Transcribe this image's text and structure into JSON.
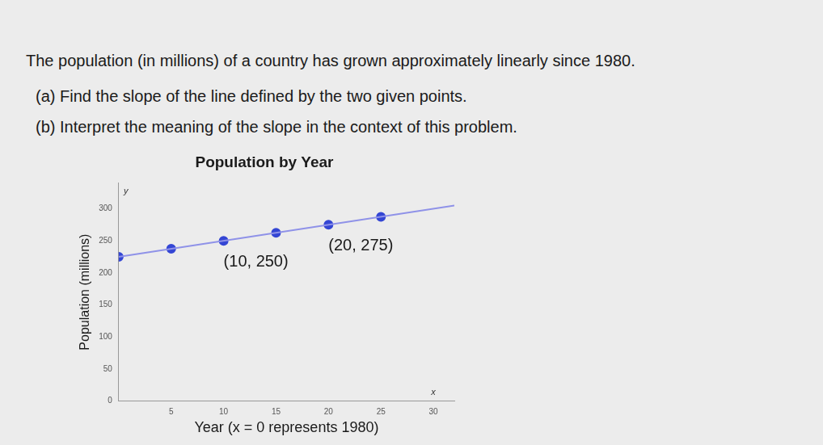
{
  "problem": {
    "intro": "The population (in millions) of a country has grown approximately linearly since 1980.",
    "parts": [
      {
        "label": "(a)",
        "text": "Find the slope of the line defined by the two given points."
      },
      {
        "label": "(b)",
        "text": "Interpret the meaning of the slope in the context of this problem."
      }
    ]
  },
  "chart_data": {
    "type": "line",
    "title": "Population by Year",
    "x_label": "Year (x = 0 represents 1980)",
    "y_label": "Population (millions)",
    "x_symbol": "x",
    "y_symbol": "y",
    "xlim": [
      0,
      32
    ],
    "xticks": [
      5,
      10,
      15,
      20,
      25,
      30
    ],
    "ylim": [
      0,
      340
    ],
    "yticks": [
      0,
      50,
      100,
      150,
      200,
      250,
      300
    ],
    "grid": false,
    "series": [
      {
        "type": "line",
        "color": "#8f92e8",
        "marker": "none",
        "x": [
          0,
          32
        ],
        "values": [
          225,
          305
        ]
      },
      {
        "type": "scatter",
        "color": "#3446d4",
        "marker": "circle",
        "x": [
          0,
          5,
          10,
          15,
          20,
          25
        ],
        "values": [
          225,
          237.5,
          250,
          262.5,
          275,
          287.5
        ]
      }
    ],
    "annotations": [
      {
        "text": "(10, 250)",
        "x": 10,
        "y": 250
      },
      {
        "text": "(20, 275)",
        "x": 20,
        "y": 275
      }
    ]
  }
}
